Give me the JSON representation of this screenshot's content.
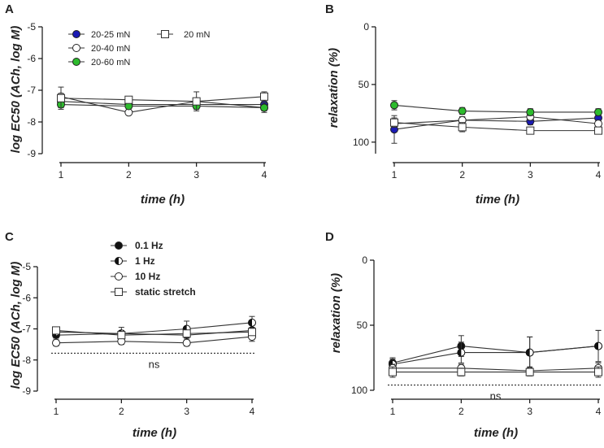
{
  "chart_data": [
    {
      "panel": "A",
      "type": "line",
      "xlabel": "time (h)",
      "ylabel": "log EC50 (ACh, log M)",
      "x": [
        1,
        2,
        3,
        4
      ],
      "ylim": [
        -9,
        -5
      ],
      "yticks": [
        -5,
        -6,
        -7,
        -8,
        -9
      ],
      "legend": {
        "placement": "top-left",
        "columns": 2
      },
      "series": [
        {
          "name": "20-25 mN",
          "marker": "circle",
          "fill": "#1a1ab4",
          "values": [
            -7.35,
            -7.45,
            -7.45,
            -7.45
          ],
          "errors": [
            0.1,
            0.05,
            0.1,
            0.1
          ]
        },
        {
          "name": "20-40 mN",
          "marker": "circle",
          "fill": "#ffffff",
          "values": [
            -7.2,
            -7.7,
            -7.35,
            -7.55
          ],
          "errors": [
            0.1,
            0.05,
            0.1,
            0.1
          ]
        },
        {
          "name": "20-60 mN",
          "marker": "circle",
          "fill": "#2dbb2d",
          "values": [
            -7.45,
            -7.5,
            -7.5,
            -7.55
          ],
          "errors": [
            0.1,
            0.05,
            0.1,
            0.15
          ]
        },
        {
          "name": "20 mN",
          "marker": "square",
          "fill": "#ffffff",
          "values": [
            -7.25,
            -7.3,
            -7.35,
            -7.2
          ],
          "errors": [
            0.35,
            0.1,
            0.3,
            0.15
          ]
        }
      ]
    },
    {
      "panel": "B",
      "type": "line",
      "xlabel": "time (h)",
      "ylabel": "relaxation (%)",
      "x": [
        1,
        2,
        3,
        4
      ],
      "ylim": [
        0,
        110
      ],
      "y_inverted": true,
      "yticks": [
        0,
        50,
        100
      ],
      "series": [
        {
          "name": "20-25 mN",
          "marker": "circle",
          "fill": "#1a1ab4",
          "values": [
            89,
            81,
            82,
            79
          ],
          "errors": [
            12,
            3,
            3,
            3
          ]
        },
        {
          "name": "20-40 mN",
          "marker": "circle",
          "fill": "#ffffff",
          "values": [
            84,
            81,
            78,
            84
          ],
          "errors": [
            3,
            3,
            3,
            3
          ]
        },
        {
          "name": "20-60 mN",
          "marker": "circle",
          "fill": "#2dbb2d",
          "values": [
            68,
            73,
            74,
            74
          ],
          "errors": [
            4,
            3,
            3,
            3
          ]
        },
        {
          "name": "20 mN",
          "marker": "square",
          "fill": "#ffffff",
          "values": [
            83,
            87,
            90,
            90
          ],
          "errors": [
            4,
            4,
            3,
            3
          ]
        }
      ]
    },
    {
      "panel": "C",
      "type": "line",
      "xlabel": "time (h)",
      "ylabel": "log EC50 (ACh, log M)",
      "x": [
        1,
        2,
        3,
        4
      ],
      "ylim": [
        -9,
        -5
      ],
      "yticks": [
        -5,
        -6,
        -7,
        -8,
        -9
      ],
      "legend": {
        "placement": "top-left",
        "columns": 1
      },
      "reference_line": -7.78,
      "annotation": "ns",
      "series": [
        {
          "name": "0.1 Hz",
          "marker": "circle",
          "fill": "#111111",
          "values": [
            -7.2,
            -7.15,
            -7.2,
            -7.05
          ],
          "errors": [
            0.1,
            0.1,
            0.1,
            0.1
          ]
        },
        {
          "name": "1 Hz",
          "marker": "half",
          "fill": "#111111",
          "values": [
            -7.1,
            -7.15,
            -7.0,
            -6.8
          ],
          "errors": [
            0.1,
            0.2,
            0.25,
            0.2
          ]
        },
        {
          "name": "10 Hz",
          "marker": "circle",
          "fill": "#ffffff",
          "values": [
            -7.45,
            -7.4,
            -7.45,
            -7.25
          ],
          "errors": [
            0.1,
            0.1,
            0.1,
            0.15
          ]
        },
        {
          "name": "static stretch",
          "marker": "square",
          "fill": "#ffffff",
          "values": [
            -7.05,
            -7.2,
            -7.15,
            -7.1
          ],
          "errors": [
            0.05,
            0.1,
            0.1,
            0.1
          ]
        }
      ]
    },
    {
      "panel": "D",
      "type": "line",
      "xlabel": "time (h)",
      "ylabel": "relaxation (%)",
      "x": [
        1,
        2,
        3,
        4
      ],
      "ylim": [
        0,
        100
      ],
      "y_inverted": true,
      "yticks": [
        0,
        50,
        100
      ],
      "reference_line": 96,
      "annotation": "ns",
      "series": [
        {
          "name": "0.1 Hz",
          "marker": "circle",
          "fill": "#111111",
          "values": [
            79,
            66,
            71,
            66
          ],
          "errors": [
            4,
            8,
            12,
            12
          ]
        },
        {
          "name": "1 Hz",
          "marker": "half",
          "fill": "#111111",
          "values": [
            80,
            71,
            71,
            66
          ],
          "errors": [
            4,
            8,
            12,
            12
          ]
        },
        {
          "name": "10 Hz",
          "marker": "circle",
          "fill": "#ffffff",
          "values": [
            83,
            83,
            85,
            83
          ],
          "errors": [
            3,
            3,
            3,
            4
          ]
        },
        {
          "name": "static stretch",
          "marker": "square",
          "fill": "#ffffff",
          "values": [
            86,
            86,
            86,
            86
          ],
          "errors": [
            4,
            3,
            3,
            4
          ]
        }
      ]
    }
  ]
}
